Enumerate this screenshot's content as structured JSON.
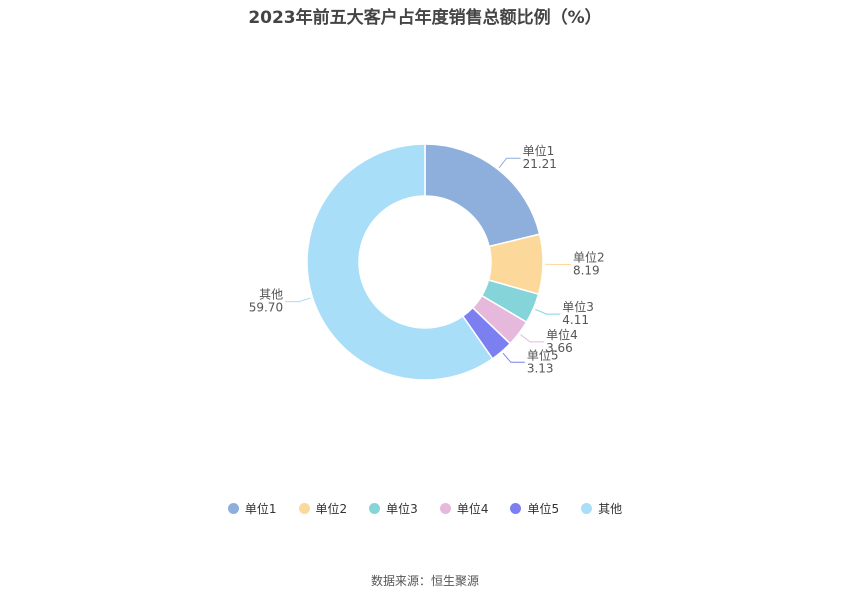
{
  "title": "2023年前五大客户占年度销售总额比例（%）",
  "source": "数据来源：恒生聚源",
  "chart_data": {
    "type": "pie",
    "donut": true,
    "title": "2023年前五大客户占年度销售总额比例（%）",
    "legend_position": "bottom",
    "categories": [
      "单位1",
      "单位2",
      "单位3",
      "单位4",
      "单位5",
      "其他"
    ],
    "values": [
      21.21,
      8.19,
      4.11,
      3.66,
      3.13,
      59.7
    ],
    "value_labels": [
      "21.21",
      "8.19",
      "4.11",
      "3.66",
      "3.13",
      "59.70"
    ],
    "colors": [
      "#8eaedb",
      "#fdd89b",
      "#85d4d9",
      "#e6b9dc",
      "#7b7ff0",
      "#a9def8"
    ]
  }
}
